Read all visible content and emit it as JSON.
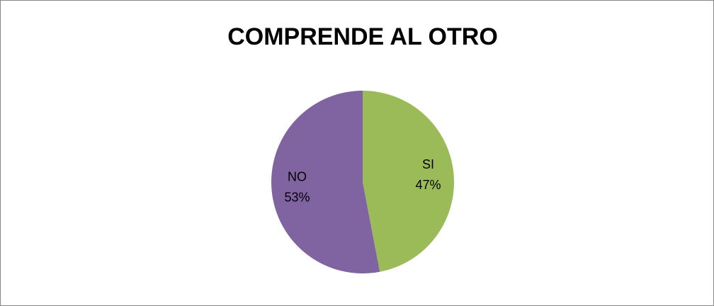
{
  "chart_data": {
    "type": "pie",
    "title": "COMPRENDE AL OTRO",
    "categories": [
      "SI",
      "NO"
    ],
    "values": [
      47,
      53
    ],
    "value_labels": [
      "47%",
      "53%"
    ],
    "colors": [
      "#9bbb59",
      "#8064a2"
    ]
  }
}
